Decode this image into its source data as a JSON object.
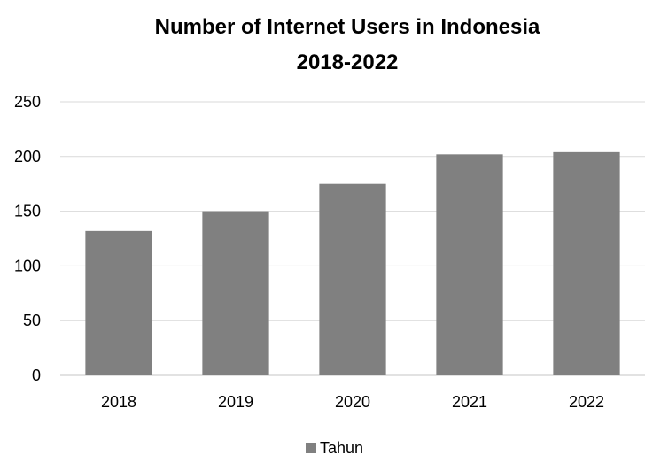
{
  "chart_data": {
    "type": "bar",
    "title_lines": [
      "Number of Internet Users in Indonesia",
      "2018-2022"
    ],
    "categories": [
      "2018",
      "2019",
      "2020",
      "2021",
      "2022"
    ],
    "series": [
      {
        "name": "Tahun",
        "values": [
          132,
          150,
          175,
          202,
          204
        ],
        "color": "#808080"
      }
    ],
    "xlabel": "",
    "ylabel": "",
    "ylim": [
      0,
      250
    ],
    "yticks": [
      0,
      50,
      100,
      150,
      200,
      250
    ],
    "grid": true,
    "gridline_color": "#d9d9d9",
    "axis_color": "#d9d9d9",
    "legend_position": "bottom"
  }
}
